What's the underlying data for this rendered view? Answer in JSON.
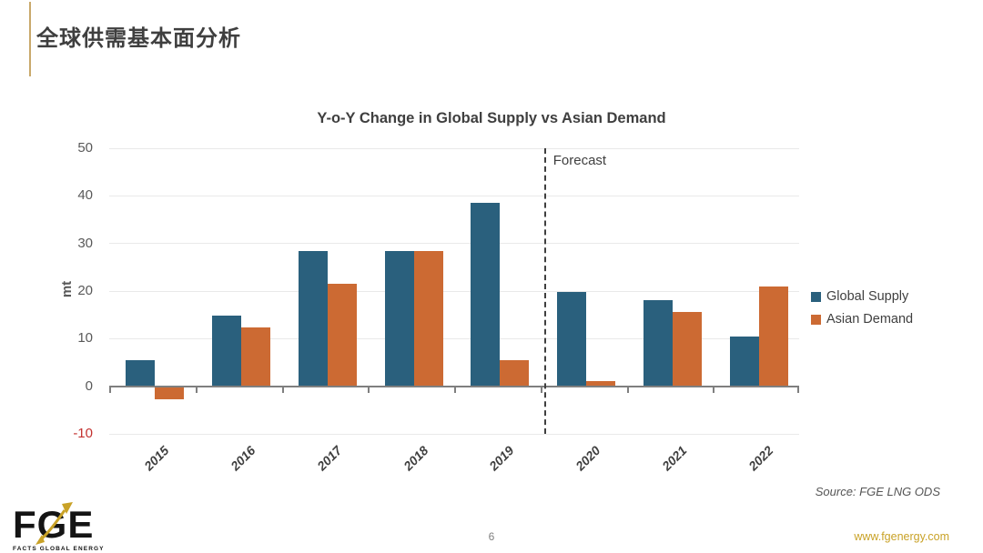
{
  "slide": {
    "title": "全球供需基本面分析",
    "page_number": "6",
    "source": "Source: FGE LNG ODS",
    "website": "www.fgenergy.com"
  },
  "logo": {
    "text": "FGE",
    "subtext": "FACTS GLOBAL ENERGY",
    "arrow_color": "#C9A227"
  },
  "colors": {
    "accent_gold": "#C9A96B",
    "title_text": "#3F3F3F",
    "axis_text": "#595959",
    "negative_tick": "#C3312F",
    "gridline": "#E9E9E9",
    "axis_line": "#7F7F7F"
  },
  "chart_data": {
    "type": "bar",
    "title": "Y-o-Y Change in Global Supply vs Asian Demand",
    "xlabel": "",
    "ylabel": "mt",
    "categories": [
      "2015",
      "2016",
      "2017",
      "2018",
      "2019",
      "2020",
      "2021",
      "2022"
    ],
    "series": [
      {
        "name": "Global Supply",
        "color": "#2A607D",
        "values": [
          5.5,
          14.8,
          28.5,
          28.5,
          38.5,
          19.8,
          18.0,
          10.5
        ]
      },
      {
        "name": "Asian Demand",
        "color": "#CC6A33",
        "values": [
          -2.5,
          12.4,
          21.5,
          28.4,
          5.5,
          1.0,
          15.7,
          21.0
        ]
      }
    ],
    "ylim": [
      -10,
      50
    ],
    "yticks": [
      50,
      40,
      30,
      20,
      10,
      0,
      -10
    ],
    "grid": true,
    "legend_position": "right",
    "annotation": {
      "label": "Forecast",
      "after_category": "2019"
    }
  }
}
